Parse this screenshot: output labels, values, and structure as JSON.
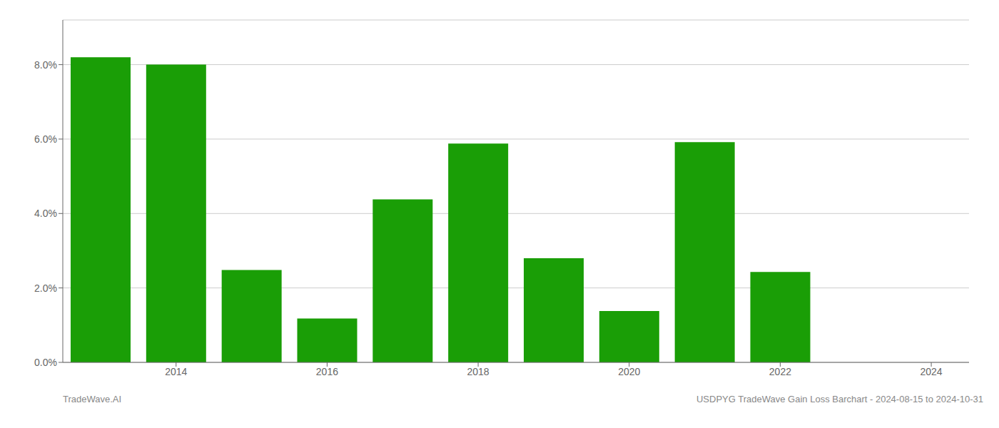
{
  "chart_data": {
    "type": "bar",
    "x": [
      2013,
      2014,
      2015,
      2016,
      2017,
      2018,
      2019,
      2020,
      2021,
      2022
    ],
    "values": [
      0.082,
      0.08,
      0.0248,
      0.0118,
      0.0438,
      0.0588,
      0.028,
      0.0138,
      0.0592,
      0.0243
    ],
    "color": "#1a9e06",
    "xlim": [
      2012.5,
      2024.5
    ],
    "xticks": [
      2014,
      2016,
      2018,
      2020,
      2022,
      2024
    ],
    "ylim": [
      0,
      0.092
    ],
    "yticks": [
      {
        "value": 0.0,
        "label": "0.0%"
      },
      {
        "value": 0.02,
        "label": "2.0%"
      },
      {
        "value": 0.04,
        "label": "4.0%"
      },
      {
        "value": 0.06,
        "label": "6.0%"
      },
      {
        "value": 0.08,
        "label": "8.0%"
      }
    ],
    "grid": true,
    "annotations": [
      "TradeWave.AI",
      "USDPYG TradeWave Gain Loss Barchart - 2024-08-15 to 2024-10-31"
    ]
  }
}
